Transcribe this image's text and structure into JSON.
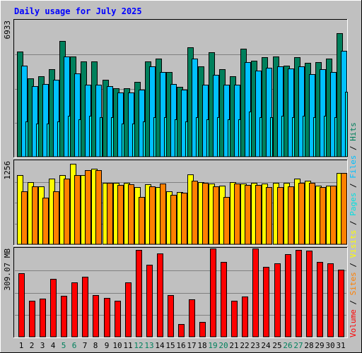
{
  "chart_data": {
    "type": "bar",
    "title": "Daily usage for July 2025",
    "colors": {
      "background": "#c0c0c0",
      "panel": "#c0c0c0",
      "title": "#0000ff",
      "hits": "#00805c",
      "files": "#00c0ff",
      "pages": "#00e0e0",
      "visits": "#ffff00",
      "sites": "#ff8000",
      "volume": "#ff0000",
      "weekend_label": "#00805c",
      "weekday_label": "#000000",
      "scale_label": "#000000"
    },
    "categories": [
      "1",
      "2",
      "3",
      "4",
      "5",
      "6",
      "7",
      "8",
      "9",
      "10",
      "11",
      "12",
      "13",
      "14",
      "15",
      "16",
      "17",
      "18",
      "19",
      "20",
      "21",
      "22",
      "23",
      "24",
      "25",
      "26",
      "27",
      "28",
      "29",
      "30",
      "31"
    ],
    "weekend_days": [
      "5",
      "6",
      "12",
      "13",
      "19",
      "20",
      "26",
      "27"
    ],
    "panels": [
      {
        "name": "hits_files_pages",
        "scale_label": "6933",
        "ylim": [
          0,
          6933
        ],
        "series": [
          {
            "name": "Hits",
            "values": [
              5350,
              4000,
              4100,
              4450,
              5900,
              5100,
              4850,
              4850,
              3900,
              3500,
              3500,
              3800,
              4850,
              5000,
              4300,
              3550,
              5550,
              4600,
              5300,
              4450,
              4100,
              5500,
              4900,
              5050,
              5100,
              4650,
              5050,
              4780,
              4800,
              5000,
              6300
            ]
          },
          {
            "name": "Files",
            "values": [
              4650,
              3600,
              3700,
              3900,
              5100,
              4230,
              3660,
              3660,
              3600,
              3260,
              3260,
              3400,
              4600,
              4300,
              3700,
              3400,
              5000,
              3650,
              4150,
              3660,
              3660,
              4800,
              4380,
              4520,
              4600,
              4500,
              4600,
              4200,
              4460,
              4320,
              5400
            ]
          },
          {
            "name": "Pages",
            "values": [
              1800,
              1700,
              1700,
              1800,
              2100,
              1900,
              2100,
              2000,
              2000,
              1700,
              1700,
              1800,
              2000,
              2000,
              1900,
              1800,
              2000,
              1900,
              2000,
              1900,
              1900,
              2300,
              2000,
              2000,
              2100,
              2000,
              2100,
              2000,
              2100,
              2000,
              3300
            ]
          }
        ]
      },
      {
        "name": "visits_sites",
        "scale_label": "1256",
        "ylim": [
          0,
          1256
        ],
        "series": [
          {
            "name": "Visits",
            "values": [
              1046,
              935,
              869,
              991,
              1038,
              1210,
              1046,
              1138,
              928,
              928,
              923,
              867,
              910,
              862,
              796,
              788,
              1056,
              935,
              914,
              886,
              935,
              917,
              925,
              911,
              927,
              930,
              985,
              955,
              888,
              880,
              1075
            ]
          },
          {
            "name": "Sites",
            "values": [
              800,
              872,
              700,
              800,
              990,
              1040,
              1120,
              1122,
              928,
              897,
              904,
              710,
              872,
              920,
              750,
              780,
              958,
              925,
              869,
              710,
              916,
              893,
              890,
              861,
              860,
              869,
              928,
              928,
              860,
              880,
              1075
            ]
          }
        ]
      },
      {
        "name": "volume",
        "scale_label": "309.07 MB",
        "ylim": [
          0,
          309.07
        ],
        "series": [
          {
            "name": "Volume",
            "values": [
              222,
              126,
              133,
              202,
              144,
              191,
              210,
              147,
              135,
              127,
              191,
              303,
              252,
              292,
              145,
              45,
              132,
              53,
              308,
              261,
              126,
              140,
              309,
              246,
              256,
              290,
              303,
              301,
              261,
              257,
              236
            ]
          }
        ]
      }
    ],
    "legend": {
      "placement": "right",
      "separator": "/",
      "items": [
        {
          "name": "Volume",
          "color": "#ff0000"
        },
        {
          "name": "Sites",
          "color": "#ff8000"
        },
        {
          "name": "Visits",
          "color": "#ffff00"
        },
        {
          "name": "Pages",
          "color": "#00e0e0"
        },
        {
          "name": "Files",
          "color": "#00c0ff"
        },
        {
          "name": "Hits",
          "color": "#00805c"
        }
      ]
    }
  }
}
